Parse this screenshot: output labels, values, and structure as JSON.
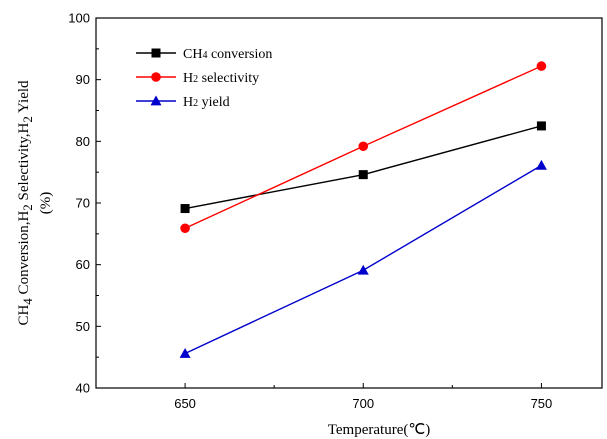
{
  "chart_data": {
    "type": "line",
    "title": "",
    "xlabel": "Temperature(℃)",
    "ylabel": "CH4 Conversion,H2 Selectivity,H2 Yield (%)",
    "ylabel_parts": {
      "line1_a": "CH",
      "line1_sub1": "4",
      "line1_b": " Conversion,H",
      "line1_sub2": "2",
      "line1_c": " Selectivity,H",
      "line1_sub3": "2",
      "line1_d": " Yield",
      "line2": "(%)"
    },
    "x": [
      650,
      700,
      750
    ],
    "x_ticks": [
      "650",
      "700",
      "750"
    ],
    "xlim": [
      625,
      767
    ],
    "ylim": [
      40,
      100
    ],
    "y_ticks": [
      "40",
      "50",
      "60",
      "70",
      "80",
      "90",
      "100"
    ],
    "grid": false,
    "legend_position": "top-left",
    "series": [
      {
        "name": "CH4 conversion",
        "name_main": "CH",
        "name_sub": "4",
        "name_rest": " conversion",
        "marker": "square",
        "color": "#000000",
        "values": [
          69.1,
          74.6,
          82.5
        ]
      },
      {
        "name": "H2 selectivity",
        "name_main": "H",
        "name_sub": "2",
        "name_rest": " selectivity",
        "marker": "circle",
        "color": "#ff0000",
        "values": [
          65.9,
          79.2,
          92.2
        ]
      },
      {
        "name": "H2 yield",
        "name_main": "H",
        "name_sub": "2",
        "name_rest": " yield",
        "marker": "triangle",
        "color": "#0000cc",
        "values": [
          45.6,
          59.1,
          76.1
        ]
      }
    ]
  }
}
